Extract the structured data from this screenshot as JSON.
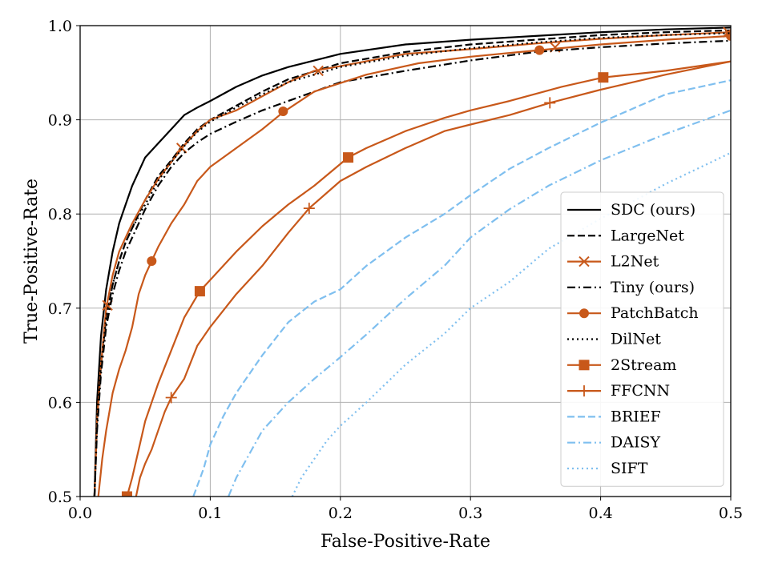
{
  "chart_data": {
    "type": "line",
    "title": "",
    "xlabel": "False-Positive-Rate",
    "ylabel": "True-Positive-Rate",
    "xlim": [
      0.0,
      0.5
    ],
    "ylim": [
      0.5,
      1.0
    ],
    "xticks": [
      0.0,
      0.1,
      0.2,
      0.3,
      0.4,
      0.5
    ],
    "xtick_labels": [
      "0.0",
      "0.1",
      "0.2",
      "0.3",
      "0.4",
      "0.5"
    ],
    "yticks": [
      0.5,
      0.6,
      0.7,
      0.8,
      0.9,
      1.0
    ],
    "ytick_labels": [
      "0.5",
      "0.6",
      "0.7",
      "0.8",
      "0.9",
      "1.0"
    ],
    "grid": true,
    "legend_position": "lower-right",
    "series": [
      {
        "name": "SDC (ours)",
        "color": "#000000",
        "dash": "solid",
        "marker": "none",
        "x": [
          0.011,
          0.013,
          0.016,
          0.02,
          0.025,
          0.03,
          0.035,
          0.04,
          0.05,
          0.06,
          0.07,
          0.08,
          0.09,
          0.1,
          0.12,
          0.14,
          0.16,
          0.2,
          0.25,
          0.3,
          0.35,
          0.4,
          0.45,
          0.5
        ],
        "y": [
          0.5,
          0.6,
          0.67,
          0.72,
          0.76,
          0.79,
          0.81,
          0.83,
          0.86,
          0.875,
          0.89,
          0.905,
          0.913,
          0.92,
          0.935,
          0.947,
          0.956,
          0.97,
          0.98,
          0.985,
          0.989,
          0.993,
          0.996,
          0.998
        ]
      },
      {
        "name": "LargeNet",
        "color": "#000000",
        "dash": "dashed",
        "marker": "none",
        "x": [
          0.011,
          0.013,
          0.016,
          0.02,
          0.025,
          0.03,
          0.035,
          0.04,
          0.05,
          0.06,
          0.07,
          0.08,
          0.09,
          0.1,
          0.12,
          0.14,
          0.16,
          0.2,
          0.25,
          0.3,
          0.35,
          0.4,
          0.45,
          0.5
        ],
        "y": [
          0.5,
          0.58,
          0.64,
          0.69,
          0.725,
          0.75,
          0.77,
          0.785,
          0.815,
          0.84,
          0.857,
          0.875,
          0.89,
          0.9,
          0.915,
          0.93,
          0.943,
          0.96,
          0.972,
          0.98,
          0.985,
          0.99,
          0.993,
          0.995
        ]
      },
      {
        "name": "L2Net",
        "color": "#c8581a",
        "dash": "solid",
        "marker": "x",
        "x": [
          0.011,
          0.013,
          0.016,
          0.02,
          0.025,
          0.03,
          0.035,
          0.04,
          0.05,
          0.06,
          0.07,
          0.08,
          0.09,
          0.1,
          0.12,
          0.14,
          0.16,
          0.18,
          0.2,
          0.25,
          0.3,
          0.35,
          0.4,
          0.45,
          0.5
        ],
        "y": [
          0.5,
          0.58,
          0.64,
          0.7,
          0.735,
          0.76,
          0.775,
          0.79,
          0.815,
          0.837,
          0.855,
          0.873,
          0.888,
          0.9,
          0.91,
          0.925,
          0.94,
          0.952,
          0.957,
          0.97,
          0.975,
          0.981,
          0.986,
          0.99,
          0.993
        ],
        "markers_x": [
          0.021,
          0.078,
          0.183,
          0.365,
          0.498
        ],
        "markers_y": [
          0.703,
          0.87,
          0.952,
          0.977,
          0.993
        ]
      },
      {
        "name": "Tiny (ours)",
        "color": "#000000",
        "dash": "dashdot",
        "marker": "none",
        "x": [
          0.011,
          0.013,
          0.016,
          0.02,
          0.025,
          0.03,
          0.035,
          0.04,
          0.05,
          0.06,
          0.07,
          0.08,
          0.09,
          0.1,
          0.12,
          0.14,
          0.16,
          0.2,
          0.25,
          0.3,
          0.35,
          0.4,
          0.45,
          0.5
        ],
        "y": [
          0.5,
          0.57,
          0.63,
          0.68,
          0.715,
          0.74,
          0.76,
          0.775,
          0.805,
          0.83,
          0.85,
          0.865,
          0.876,
          0.885,
          0.898,
          0.91,
          0.92,
          0.94,
          0.952,
          0.963,
          0.972,
          0.977,
          0.981,
          0.984
        ]
      },
      {
        "name": "PatchBatch",
        "color": "#c8581a",
        "dash": "solid",
        "marker": "circle",
        "x": [
          0.014,
          0.017,
          0.02,
          0.025,
          0.03,
          0.035,
          0.04,
          0.045,
          0.05,
          0.055,
          0.06,
          0.07,
          0.08,
          0.09,
          0.1,
          0.12,
          0.14,
          0.156,
          0.18,
          0.22,
          0.26,
          0.3,
          0.353,
          0.4,
          0.45,
          0.5
        ],
        "y": [
          0.5,
          0.54,
          0.57,
          0.61,
          0.635,
          0.655,
          0.68,
          0.715,
          0.735,
          0.75,
          0.765,
          0.79,
          0.81,
          0.835,
          0.85,
          0.87,
          0.89,
          0.908,
          0.93,
          0.948,
          0.96,
          0.967,
          0.974,
          0.98,
          0.985,
          0.989
        ],
        "markers_x": [
          0.055,
          0.156,
          0.353,
          0.5
        ],
        "markers_y": [
          0.75,
          0.909,
          0.974,
          0.989
        ]
      },
      {
        "name": "DilNet",
        "color": "#000000",
        "dash": "dotted",
        "marker": "none",
        "x": [
          0.011,
          0.013,
          0.016,
          0.02,
          0.025,
          0.03,
          0.035,
          0.04,
          0.05,
          0.06,
          0.07,
          0.08,
          0.09,
          0.1,
          0.12,
          0.14,
          0.16,
          0.2,
          0.25,
          0.3,
          0.35,
          0.4,
          0.45,
          0.5
        ],
        "y": [
          0.5,
          0.58,
          0.64,
          0.69,
          0.725,
          0.75,
          0.77,
          0.785,
          0.81,
          0.835,
          0.855,
          0.872,
          0.887,
          0.898,
          0.913,
          0.927,
          0.94,
          0.956,
          0.968,
          0.976,
          0.982,
          0.987,
          0.99,
          0.992
        ]
      },
      {
        "name": "2Stream",
        "color": "#c8581a",
        "dash": "solid",
        "marker": "square",
        "x": [
          0.036,
          0.04,
          0.045,
          0.05,
          0.06,
          0.07,
          0.08,
          0.092,
          0.1,
          0.12,
          0.14,
          0.16,
          0.18,
          0.206,
          0.22,
          0.25,
          0.28,
          0.3,
          0.33,
          0.37,
          0.402,
          0.45,
          0.5
        ],
        "y": [
          0.5,
          0.52,
          0.55,
          0.58,
          0.62,
          0.655,
          0.69,
          0.718,
          0.73,
          0.76,
          0.787,
          0.81,
          0.83,
          0.86,
          0.87,
          0.888,
          0.902,
          0.91,
          0.92,
          0.935,
          0.945,
          0.952,
          0.962
        ],
        "markers_x": [
          0.036,
          0.092,
          0.206,
          0.402
        ],
        "markers_y": [
          0.5,
          0.718,
          0.86,
          0.945
        ]
      },
      {
        "name": "FFCNN",
        "color": "#c8581a",
        "dash": "solid",
        "marker": "plus",
        "x": [
          0.043,
          0.046,
          0.05,
          0.055,
          0.06,
          0.065,
          0.07,
          0.08,
          0.09,
          0.1,
          0.12,
          0.14,
          0.16,
          0.176,
          0.2,
          0.22,
          0.25,
          0.28,
          0.3,
          0.33,
          0.361,
          0.4,
          0.45,
          0.5
        ],
        "y": [
          0.5,
          0.52,
          0.535,
          0.55,
          0.57,
          0.59,
          0.605,
          0.625,
          0.66,
          0.68,
          0.715,
          0.745,
          0.78,
          0.806,
          0.835,
          0.85,
          0.87,
          0.888,
          0.895,
          0.905,
          0.918,
          0.932,
          0.948,
          0.962
        ],
        "markers_x": [
          0.07,
          0.176,
          0.361
        ],
        "markers_y": [
          0.605,
          0.806,
          0.918
        ]
      },
      {
        "name": "BRIEF",
        "color": "#7fbfef",
        "dash": "dashed",
        "marker": "none",
        "x": [
          0.087,
          0.095,
          0.1,
          0.11,
          0.12,
          0.14,
          0.16,
          0.18,
          0.2,
          0.22,
          0.25,
          0.28,
          0.3,
          0.33,
          0.36,
          0.4,
          0.45,
          0.5
        ],
        "y": [
          0.5,
          0.53,
          0.555,
          0.585,
          0.61,
          0.65,
          0.685,
          0.707,
          0.72,
          0.745,
          0.775,
          0.8,
          0.82,
          0.848,
          0.87,
          0.897,
          0.927,
          0.942
        ]
      },
      {
        "name": "DAISY",
        "color": "#7fbfef",
        "dash": "dashdot",
        "marker": "none",
        "x": [
          0.114,
          0.12,
          0.13,
          0.14,
          0.16,
          0.18,
          0.2,
          0.22,
          0.25,
          0.28,
          0.3,
          0.33,
          0.36,
          0.4,
          0.45,
          0.5
        ],
        "y": [
          0.5,
          0.52,
          0.545,
          0.57,
          0.6,
          0.625,
          0.648,
          0.672,
          0.71,
          0.745,
          0.775,
          0.805,
          0.83,
          0.857,
          0.885,
          0.91
        ]
      },
      {
        "name": "SIFT",
        "color": "#7fbfef",
        "dash": "dotted",
        "marker": "none",
        "x": [
          0.163,
          0.17,
          0.18,
          0.19,
          0.2,
          0.22,
          0.25,
          0.28,
          0.3,
          0.33,
          0.36,
          0.4,
          0.45,
          0.5
        ],
        "y": [
          0.5,
          0.52,
          0.54,
          0.56,
          0.575,
          0.6,
          0.64,
          0.673,
          0.7,
          0.728,
          0.763,
          0.795,
          0.832,
          0.865
        ]
      }
    ]
  }
}
